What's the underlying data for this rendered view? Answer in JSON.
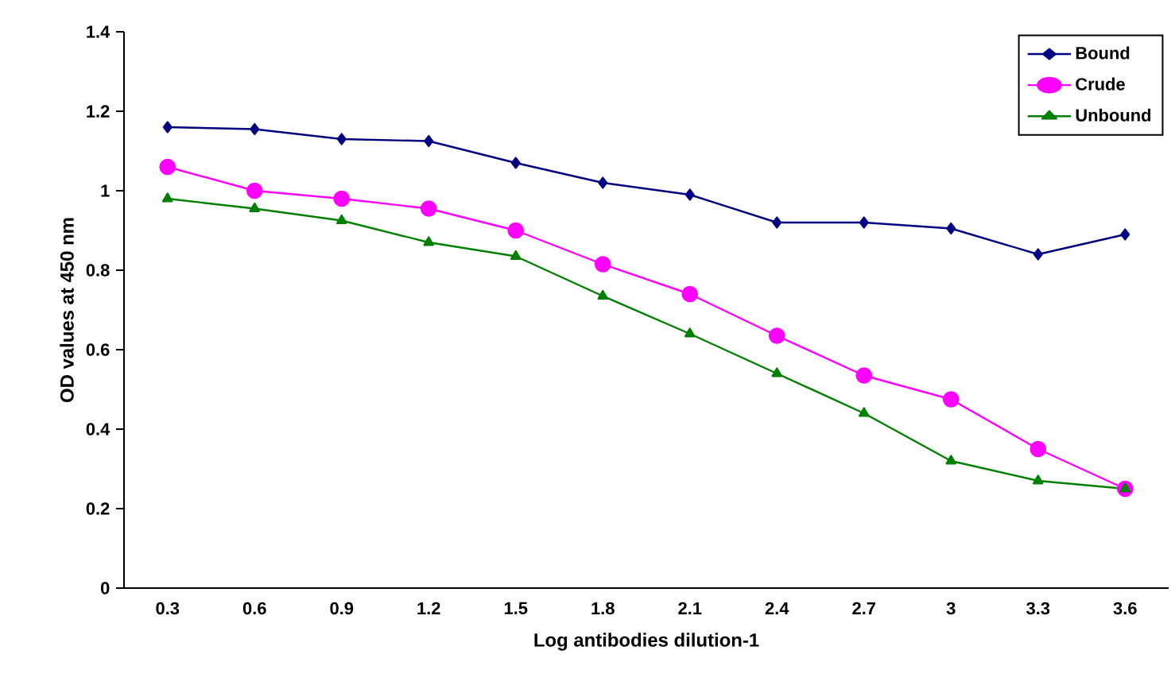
{
  "chart_data": {
    "type": "line",
    "xlabel": "Log antibodies dilution-1",
    "ylabel": "OD values at 450 nm",
    "categories": [
      "0.3",
      "0.6",
      "0.9",
      "1.2",
      "1.5",
      "1.8",
      "2.1",
      "2.4",
      "2.7",
      "3",
      "3.3",
      "3.6"
    ],
    "series": [
      {
        "name": "Bound",
        "color": "#000080",
        "marker": "diamond",
        "values": [
          1.16,
          1.155,
          1.13,
          1.125,
          1.07,
          1.02,
          0.99,
          0.92,
          0.92,
          0.905,
          0.84,
          0.89
        ]
      },
      {
        "name": "Crude",
        "color": "#ff00ff",
        "marker": "circle",
        "values": [
          1.06,
          1.0,
          0.98,
          0.955,
          0.9,
          0.815,
          0.74,
          0.635,
          0.535,
          0.475,
          0.35,
          0.25
        ]
      },
      {
        "name": "Unbound",
        "color": "#008000",
        "marker": "triangle",
        "values": [
          0.98,
          0.955,
          0.925,
          0.87,
          0.835,
          0.735,
          0.64,
          0.54,
          0.44,
          0.32,
          0.27,
          0.25
        ]
      }
    ],
    "ylim": [
      0,
      1.4
    ],
    "yticks": [
      0,
      0.2,
      0.4,
      0.6,
      0.8,
      1,
      1.2,
      1.4
    ],
    "legend": "top right",
    "grid": false
  }
}
